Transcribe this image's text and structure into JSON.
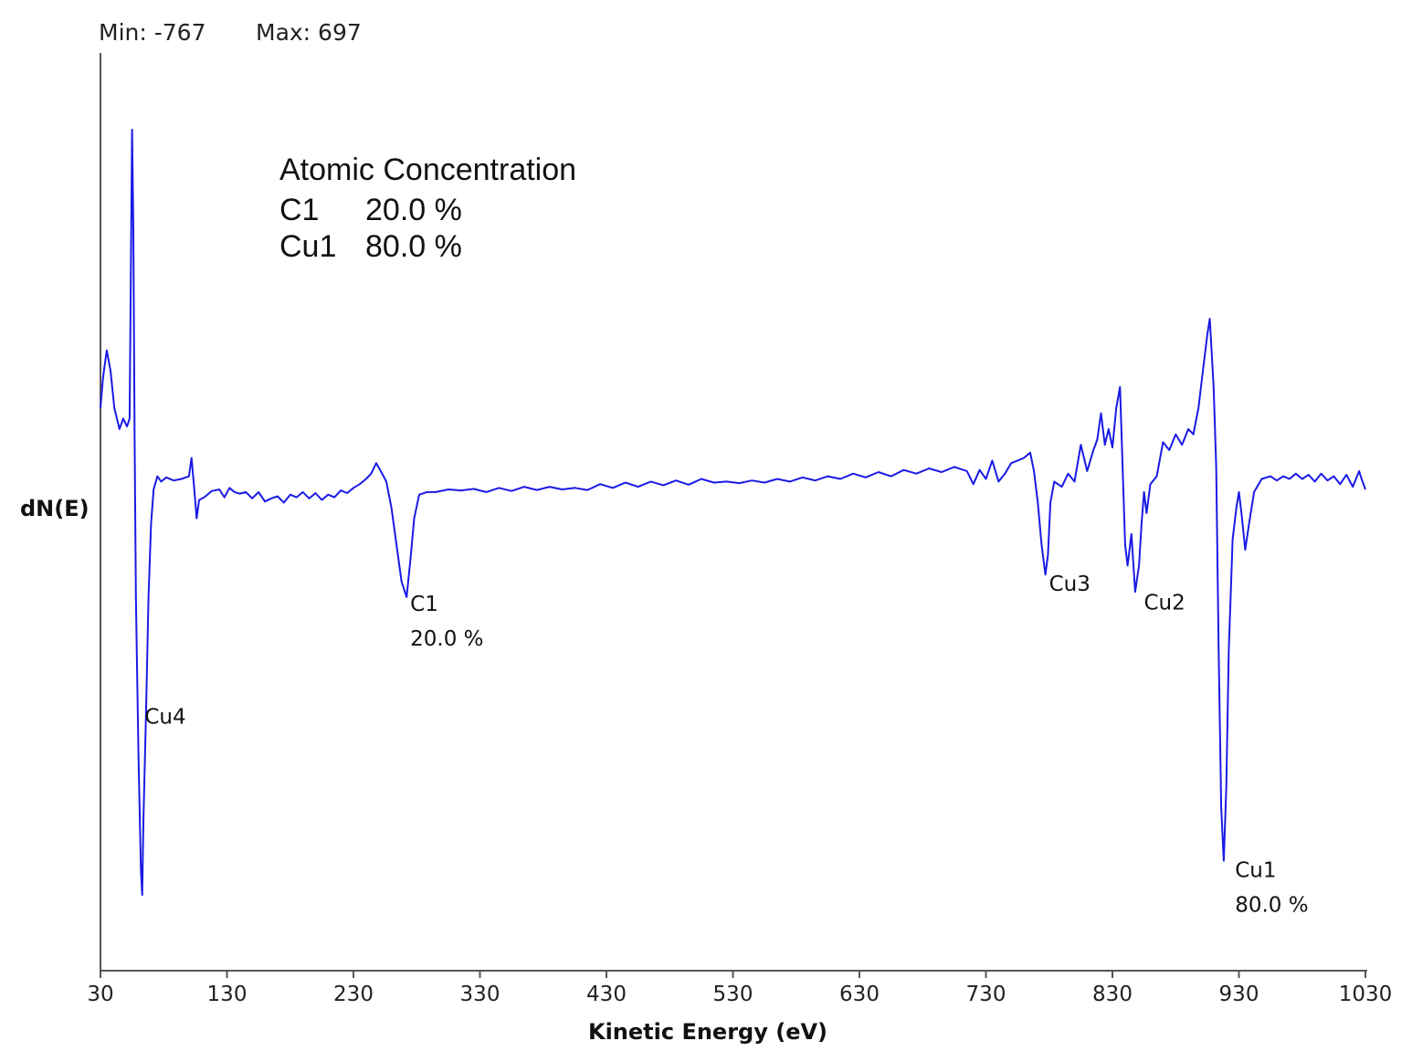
{
  "chart_data": {
    "type": "line",
    "header": {
      "min_label": "Min: -767",
      "max_label": "Max: 697"
    },
    "xlabel": "Kinetic Energy (eV)",
    "ylabel": "dN(E)",
    "xlim": [
      30,
      1030
    ],
    "ylim": [
      -767,
      697
    ],
    "x_ticks": [
      "30",
      "130",
      "230",
      "330",
      "430",
      "530",
      "630",
      "730",
      "830",
      "930",
      "1030"
    ],
    "grid": false,
    "line_color": "#1a1ae6",
    "concentration_box": {
      "title": "Atomic Concentration",
      "rows": [
        {
          "element": "C1",
          "value": "20.0 %"
        },
        {
          "element": "Cu1",
          "value": "80.0 %"
        }
      ]
    },
    "peak_labels": [
      {
        "name": "Cu4",
        "value": "",
        "x": 62,
        "y": -410
      },
      {
        "name": "C1",
        "value": "20.0 %",
        "x": 272,
        "y": -195
      },
      {
        "name": "Cu3",
        "value": "",
        "x": 777,
        "y": -157
      },
      {
        "name": "Cu2",
        "value": "",
        "x": 852,
        "y": -192
      },
      {
        "name": "Cu1",
        "value": "80.0 %",
        "x": 924,
        "y": -702
      }
    ],
    "series": [
      {
        "points": [
          [
            30,
            160
          ],
          [
            32,
            218
          ],
          [
            35,
            270
          ],
          [
            38,
            230
          ],
          [
            41,
            160
          ],
          [
            45,
            120
          ],
          [
            48,
            140
          ],
          [
            51,
            125
          ],
          [
            53,
            140
          ],
          [
            55,
            690
          ],
          [
            56,
            500
          ],
          [
            57,
            100
          ],
          [
            58,
            -200
          ],
          [
            60,
            -500
          ],
          [
            62,
            -720
          ],
          [
            63,
            -767
          ],
          [
            64,
            -620
          ],
          [
            66,
            -420
          ],
          [
            68,
            -200
          ],
          [
            70,
            -60
          ],
          [
            72,
            5
          ],
          [
            75,
            30
          ],
          [
            78,
            20
          ],
          [
            82,
            28
          ],
          [
            88,
            22
          ],
          [
            94,
            25
          ],
          [
            100,
            30
          ],
          [
            102,
            65
          ],
          [
            104,
            10
          ],
          [
            106,
            -50
          ],
          [
            108,
            -15
          ],
          [
            112,
            -10
          ],
          [
            118,
            2
          ],
          [
            124,
            5
          ],
          [
            128,
            -10
          ],
          [
            132,
            8
          ],
          [
            136,
            0
          ],
          [
            140,
            -3
          ],
          [
            145,
            0
          ],
          [
            150,
            -12
          ],
          [
            155,
            0
          ],
          [
            160,
            -18
          ],
          [
            165,
            -12
          ],
          [
            170,
            -8
          ],
          [
            175,
            -20
          ],
          [
            180,
            -5
          ],
          [
            185,
            -10
          ],
          [
            190,
            0
          ],
          [
            195,
            -12
          ],
          [
            200,
            -2
          ],
          [
            205,
            -15
          ],
          [
            210,
            -5
          ],
          [
            215,
            -10
          ],
          [
            220,
            3
          ],
          [
            225,
            -2
          ],
          [
            230,
            8
          ],
          [
            235,
            15
          ],
          [
            240,
            25
          ],
          [
            244,
            35
          ],
          [
            248,
            55
          ],
          [
            252,
            38
          ],
          [
            256,
            20
          ],
          [
            260,
            -30
          ],
          [
            264,
            -100
          ],
          [
            268,
            -170
          ],
          [
            272,
            -200
          ],
          [
            275,
            -130
          ],
          [
            278,
            -50
          ],
          [
            282,
            -5
          ],
          [
            288,
            0
          ],
          [
            295,
            0
          ],
          [
            305,
            5
          ],
          [
            315,
            3
          ],
          [
            325,
            6
          ],
          [
            335,
            0
          ],
          [
            345,
            8
          ],
          [
            355,
            2
          ],
          [
            365,
            10
          ],
          [
            375,
            4
          ],
          [
            385,
            10
          ],
          [
            395,
            5
          ],
          [
            405,
            8
          ],
          [
            415,
            4
          ],
          [
            425,
            15
          ],
          [
            435,
            8
          ],
          [
            445,
            18
          ],
          [
            455,
            10
          ],
          [
            465,
            20
          ],
          [
            475,
            13
          ],
          [
            485,
            22
          ],
          [
            495,
            14
          ],
          [
            505,
            25
          ],
          [
            515,
            18
          ],
          [
            525,
            20
          ],
          [
            535,
            17
          ],
          [
            545,
            22
          ],
          [
            555,
            18
          ],
          [
            565,
            25
          ],
          [
            575,
            20
          ],
          [
            585,
            28
          ],
          [
            595,
            22
          ],
          [
            605,
            30
          ],
          [
            615,
            25
          ],
          [
            625,
            35
          ],
          [
            635,
            28
          ],
          [
            645,
            38
          ],
          [
            655,
            30
          ],
          [
            665,
            42
          ],
          [
            675,
            35
          ],
          [
            685,
            45
          ],
          [
            695,
            38
          ],
          [
            705,
            48
          ],
          [
            715,
            40
          ],
          [
            720,
            15
          ],
          [
            725,
            42
          ],
          [
            730,
            25
          ],
          [
            735,
            60
          ],
          [
            740,
            20
          ],
          [
            745,
            35
          ],
          [
            750,
            55
          ],
          [
            755,
            60
          ],
          [
            760,
            65
          ],
          [
            765,
            75
          ],
          [
            768,
            40
          ],
          [
            771,
            -20
          ],
          [
            774,
            -100
          ],
          [
            777,
            -157
          ],
          [
            779,
            -120
          ],
          [
            781,
            -20
          ],
          [
            784,
            20
          ],
          [
            790,
            10
          ],
          [
            795,
            35
          ],
          [
            800,
            20
          ],
          [
            805,
            90
          ],
          [
            810,
            40
          ],
          [
            815,
            80
          ],
          [
            818,
            100
          ],
          [
            821,
            150
          ],
          [
            824,
            90
          ],
          [
            827,
            120
          ],
          [
            830,
            85
          ],
          [
            833,
            160
          ],
          [
            836,
            200
          ],
          [
            838,
            50
          ],
          [
            840,
            -100
          ],
          [
            842,
            -140
          ],
          [
            845,
            -80
          ],
          [
            848,
            -190
          ],
          [
            851,
            -140
          ],
          [
            853,
            -60
          ],
          [
            855,
            0
          ],
          [
            857,
            -40
          ],
          [
            860,
            15
          ],
          [
            865,
            30
          ],
          [
            870,
            95
          ],
          [
            875,
            80
          ],
          [
            880,
            110
          ],
          [
            885,
            90
          ],
          [
            890,
            120
          ],
          [
            894,
            110
          ],
          [
            898,
            160
          ],
          [
            902,
            240
          ],
          [
            905,
            300
          ],
          [
            907,
            330
          ],
          [
            910,
            200
          ],
          [
            912,
            50
          ],
          [
            914,
            -300
          ],
          [
            916,
            -600
          ],
          [
            918,
            -702
          ],
          [
            920,
            -560
          ],
          [
            922,
            -300
          ],
          [
            925,
            -90
          ],
          [
            928,
            -30
          ],
          [
            930,
            0
          ],
          [
            932,
            -40
          ],
          [
            935,
            -110
          ],
          [
            938,
            -60
          ],
          [
            942,
            0
          ],
          [
            948,
            25
          ],
          [
            955,
            30
          ],
          [
            960,
            22
          ],
          [
            965,
            30
          ],
          [
            970,
            25
          ],
          [
            975,
            35
          ],
          [
            980,
            25
          ],
          [
            985,
            33
          ],
          [
            990,
            20
          ],
          [
            995,
            35
          ],
          [
            1000,
            22
          ],
          [
            1005,
            30
          ],
          [
            1010,
            15
          ],
          [
            1015,
            33
          ],
          [
            1020,
            10
          ],
          [
            1025,
            40
          ],
          [
            1027,
            25
          ],
          [
            1030,
            5
          ]
        ]
      }
    ]
  }
}
